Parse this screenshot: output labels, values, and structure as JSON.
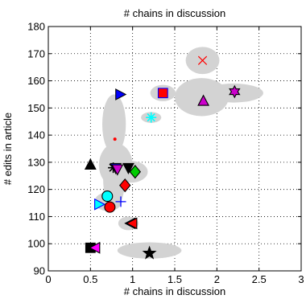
{
  "chart_data": {
    "type": "scatter",
    "title": "# chains in discussion",
    "xlabel": "# chains in discussion",
    "ylabel": "# edits in article",
    "xlim": [
      0,
      3
    ],
    "ylim": [
      90,
      180
    ],
    "xticks": [
      0,
      0.5,
      1,
      1.5,
      2,
      2.5,
      3
    ],
    "yticks": [
      90,
      100,
      110,
      120,
      130,
      140,
      150,
      160,
      170,
      180
    ],
    "xtick_labels": [
      "0",
      "0.5",
      "1",
      "1.5",
      "2",
      "2.5",
      "3"
    ],
    "ytick_labels": [
      "90",
      "100",
      "110",
      "120",
      "130",
      "140",
      "150",
      "160",
      "170",
      "180"
    ],
    "grid": "dotted",
    "ellipse_color": "#d3d3d3",
    "ellipses": [
      {
        "cx": 1.83,
        "cy": 167.5,
        "rx": 0.2,
        "ry": 5
      },
      {
        "cx": 1.82,
        "cy": 154,
        "rx": 0.32,
        "ry": 7
      },
      {
        "cx": 2.2,
        "cy": 155.5,
        "rx": 0.35,
        "ry": 3.5
      },
      {
        "cx": 1.36,
        "cy": 155.5,
        "rx": 0.15,
        "ry": 3
      },
      {
        "cx": 1.22,
        "cy": 146.5,
        "rx": 0.12,
        "ry": 2
      },
      {
        "cx": 0.78,
        "cy": 144,
        "rx": 0.14,
        "ry": 11
      },
      {
        "cx": 0.8,
        "cy": 129,
        "rx": 0.2,
        "ry": 8
      },
      {
        "cx": 0.78,
        "cy": 124,
        "rx": 0.13,
        "ry": 11
      },
      {
        "cx": 0.98,
        "cy": 126.5,
        "rx": 0.2,
        "ry": 4
      },
      {
        "cx": 0.71,
        "cy": 115.5,
        "rx": 0.16,
        "ry": 3.5
      },
      {
        "cx": 0.74,
        "cy": 118,
        "rx": 0.1,
        "ry": 3
      },
      {
        "cx": 0.95,
        "cy": 107.5,
        "rx": 0.12,
        "ry": 2.5
      },
      {
        "cx": 1.2,
        "cy": 97.5,
        "rx": 0.38,
        "ry": 3
      },
      {
        "cx": 0.52,
        "cy": 98.5,
        "rx": 0.08,
        "ry": 1.5
      }
    ],
    "points": [
      {
        "x": 1.83,
        "y": 167.5,
        "marker": "x",
        "color": "#ff0000"
      },
      {
        "x": 1.84,
        "y": 152.5,
        "marker": "triangle-up",
        "color": "#cc00cc"
      },
      {
        "x": 2.21,
        "y": 156,
        "marker": "hexagram",
        "color": "#cc00cc"
      },
      {
        "x": 1.36,
        "y": 155.5,
        "marker": "square",
        "color": "#ff0000",
        "edge": "#0000ff"
      },
      {
        "x": 0.85,
        "y": 155,
        "marker": "triangle-right",
        "color": "#0000ff"
      },
      {
        "x": 1.22,
        "y": 146.5,
        "marker": "asterisk",
        "color": "#00ffff"
      },
      {
        "x": 0.79,
        "y": 138.5,
        "marker": "dot",
        "color": "#ff0000"
      },
      {
        "x": 0.5,
        "y": 129,
        "marker": "triangle-up",
        "color": "#000000"
      },
      {
        "x": 0.77,
        "y": 128,
        "marker": "asterisk",
        "color": "#000000"
      },
      {
        "x": 0.8,
        "y": 128,
        "marker": "triangle-down",
        "color": "#0000ff"
      },
      {
        "x": 0.82,
        "y": 127.5,
        "marker": "triangle-down",
        "color": "#cc00cc"
      },
      {
        "x": 0.95,
        "y": 128,
        "marker": "triangle-down",
        "color": "#000000"
      },
      {
        "x": 1.03,
        "y": 126.5,
        "marker": "diamond",
        "color": "#00cc00"
      },
      {
        "x": 0.91,
        "y": 121.5,
        "marker": "diamond",
        "color": "#ff0000"
      },
      {
        "x": 0.7,
        "y": 117.5,
        "marker": "circle",
        "color": "#00ffff"
      },
      {
        "x": 0.86,
        "y": 115.5,
        "marker": "plus",
        "color": "#0000ff"
      },
      {
        "x": 0.6,
        "y": 114.5,
        "marker": "triangle-right",
        "color": "#00ffff",
        "edge": "#0000ff"
      },
      {
        "x": 0.73,
        "y": 113.5,
        "marker": "circle",
        "color": "#ff0000"
      },
      {
        "x": 0.98,
        "y": 107.5,
        "marker": "triangle-left",
        "color": "#0000ff"
      },
      {
        "x": 1.0,
        "y": 107.5,
        "marker": "triangle-left",
        "color": "#ff0000"
      },
      {
        "x": 0.5,
        "y": 98.5,
        "marker": "square",
        "color": "#000000"
      },
      {
        "x": 0.56,
        "y": 98.5,
        "marker": "triangle-left",
        "color": "#ff00ff"
      },
      {
        "x": 1.2,
        "y": 96.5,
        "marker": "star",
        "color": "#000000"
      }
    ]
  }
}
